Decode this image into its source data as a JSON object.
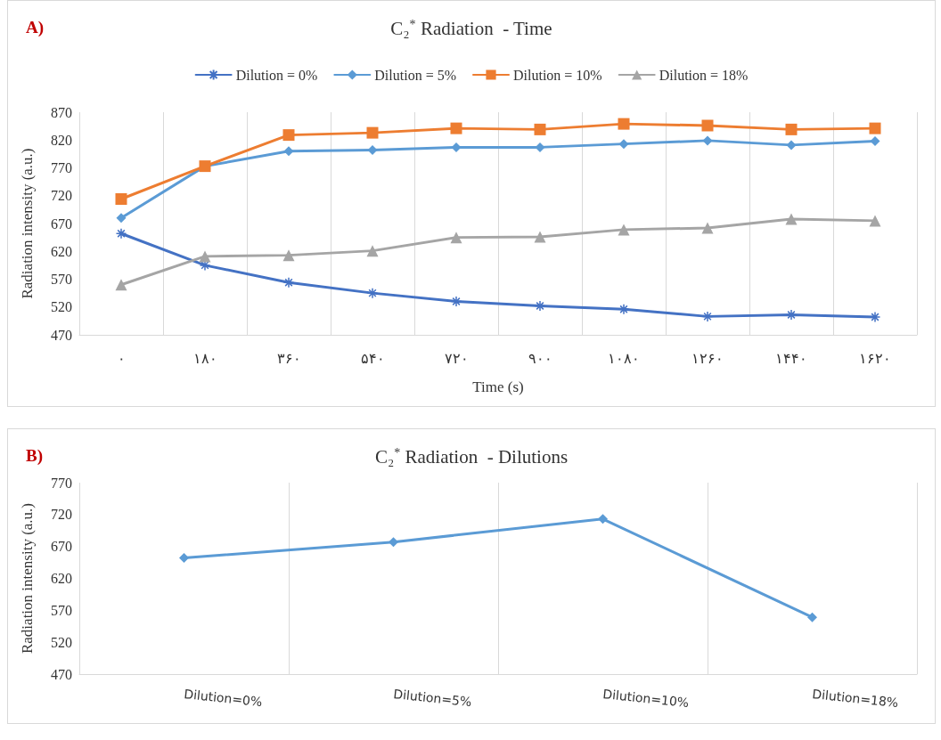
{
  "chart_data": [
    {
      "type": "line",
      "title": "C₂$^{*}$ Radiation  - Time",
      "xlabel": "Time (s)",
      "ylabel": "Radiation intensity (a.u.)",
      "annotations": [
        "A)"
      ],
      "categories": [
        "۰",
        "۱۸۰",
        "۳۶۰",
        "۵۴۰",
        "۷۲۰",
        "۹۰۰",
        "۱۰۸۰",
        "۱۲۶۰",
        "۱۴۴۰",
        "۱۶۲۰"
      ],
      "series": [
        {
          "name": "Dilution = 0%",
          "color": "#4472c4",
          "marker": "cross",
          "values": [
            652,
            595,
            564,
            545,
            530,
            522,
            516,
            503,
            506,
            502
          ]
        },
        {
          "name": "Dilution = 5%",
          "color": "#5b9bd5",
          "marker": "diamond",
          "values": [
            680,
            773,
            800,
            802,
            807,
            807,
            813,
            819,
            811,
            818
          ]
        },
        {
          "name": "Dilution = 10%",
          "color": "#ed7d31",
          "marker": "square",
          "values": [
            714,
            773,
            829,
            833,
            841,
            839,
            849,
            846,
            839,
            841
          ]
        },
        {
          "name": "Dilution = 18%",
          "color": "#a5a5a5",
          "marker": "triangle",
          "values": [
            560,
            611,
            613,
            621,
            645,
            646,
            659,
            662,
            678,
            675
          ]
        }
      ],
      "ylim": [
        470,
        870
      ],
      "yticks": [
        470,
        520,
        570,
        620,
        670,
        720,
        770,
        820,
        870
      ],
      "grid": "x",
      "legend": "top",
      "line_style": "solid"
    },
    {
      "type": "line",
      "title": "C₂$^{*}$ Radiation  - Dilutions",
      "ylabel": "Radiation intensity (a.u.)",
      "annotations": [
        "B)"
      ],
      "categories": [
        "Dilution=0%",
        "Dilution=5%",
        "Dilution=10%",
        "Dilution=18%"
      ],
      "series": [
        {
          "color": "#5b9bd5",
          "marker": "diamond",
          "values": [
            652,
            677,
            713,
            559
          ]
        }
      ],
      "ylim": [
        470,
        770
      ],
      "yticks": [
        470,
        520,
        570,
        620,
        670,
        720,
        770
      ],
      "grid": "x",
      "line_style": "solid"
    }
  ]
}
